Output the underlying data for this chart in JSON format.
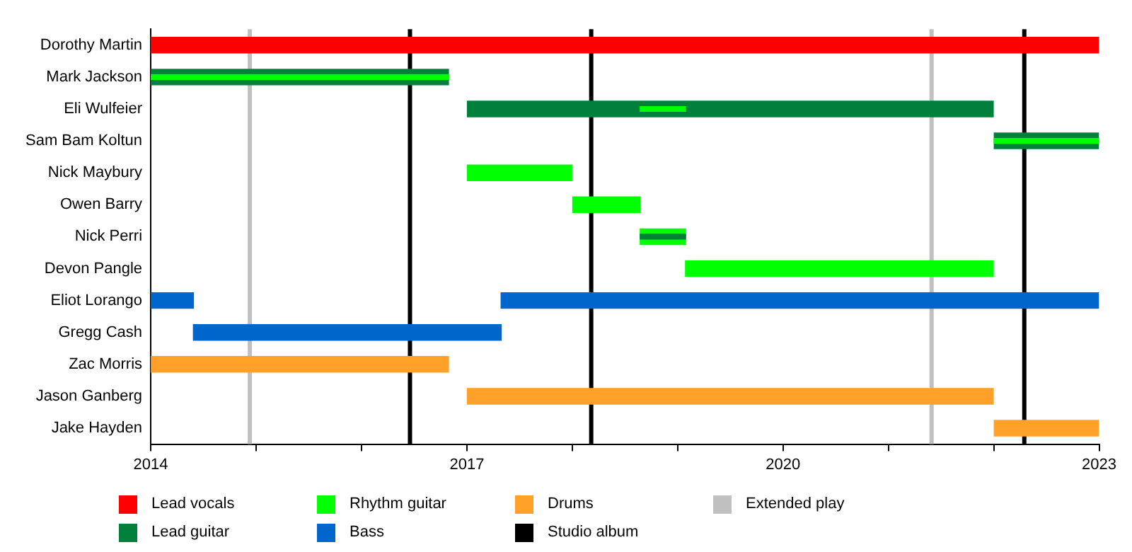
{
  "chart_data": {
    "type": "bar",
    "orientation": "horizontal",
    "categories": [
      "Dorothy Martin",
      "Mark Jackson",
      "Eli Wulfeier",
      "Sam Bam Koltun",
      "Nick Maybury",
      "Owen Barry",
      "Nick Perri",
      "Devon Pangle",
      "Eliot Lorango",
      "Gregg Cash",
      "Zac Morris",
      "Jason Ganberg",
      "Jake Hayden"
    ],
    "series": [
      {
        "name": "Lead vocals",
        "color": "#ff0000",
        "base": [
          2014,
          null,
          null,
          null,
          null,
          null,
          null,
          null,
          null,
          null,
          null,
          null,
          null
        ],
        "values": [
          9,
          null,
          null,
          null,
          null,
          null,
          null,
          null,
          null,
          null,
          null,
          null,
          null
        ]
      },
      {
        "name": "Lead guitar",
        "color": "#00803a",
        "base": [
          null,
          2014,
          2017,
          2022,
          null,
          null,
          null,
          null,
          null,
          null,
          null,
          null,
          null
        ],
        "values": [
          null,
          2.83,
          5,
          1,
          null,
          null,
          null,
          null,
          null,
          null,
          null,
          null,
          null
        ]
      },
      {
        "name": "Rhythm guitar",
        "color": "#00ff00",
        "base": [
          null,
          null,
          null,
          null,
          2017,
          2018,
          2018.64,
          2019.07,
          null,
          null,
          null,
          null,
          null
        ],
        "values": [
          null,
          null,
          null,
          null,
          1,
          0.65,
          0.44,
          2.93,
          null,
          null,
          null,
          null,
          null
        ]
      },
      {
        "color": "#00ff00",
        "base": [
          null,
          2014,
          2018.64,
          2022,
          null,
          null,
          null,
          null,
          null,
          null,
          null,
          null,
          null
        ],
        "values": [
          null,
          2.83,
          0.44,
          1,
          null,
          null,
          null,
          null,
          null,
          null,
          null,
          null,
          null
        ]
      },
      {
        "color": "#00803a",
        "base": [
          null,
          null,
          null,
          null,
          null,
          null,
          2018.64,
          null,
          null,
          null,
          null,
          null,
          null
        ],
        "values": [
          null,
          null,
          null,
          null,
          null,
          null,
          0.44,
          null,
          null,
          null,
          null,
          null,
          null
        ]
      },
      {
        "name": "Bass",
        "color": "#0066cc",
        "base": [
          null,
          null,
          null,
          null,
          null,
          null,
          null,
          null,
          2014,
          2014.4,
          null,
          null,
          null
        ],
        "values": [
          null,
          null,
          null,
          null,
          null,
          null,
          null,
          null,
          0.41,
          2.93,
          null,
          null,
          null
        ]
      },
      {
        "color": "#0066cc",
        "base": [
          null,
          null,
          null,
          null,
          null,
          null,
          null,
          null,
          2017.32,
          null,
          null,
          null,
          null
        ],
        "values": [
          null,
          null,
          null,
          null,
          null,
          null,
          null,
          null,
          5.68,
          null,
          null,
          null,
          null
        ]
      },
      {
        "name": "Drums",
        "color": "#ffa028",
        "base": [
          null,
          null,
          null,
          null,
          null,
          null,
          null,
          null,
          null,
          null,
          2014,
          2017,
          2022
        ],
        "values": [
          null,
          null,
          null,
          null,
          null,
          null,
          null,
          null,
          null,
          null,
          2.83,
          5,
          1
        ]
      }
    ],
    "ref_lines": [
      {
        "axis": "x",
        "value": 2014.94,
        "label": "Extended play",
        "color": "#c0c0c0"
      },
      {
        "axis": "x",
        "value": 2016.46,
        "label": "Studio album",
        "color": "#000000"
      },
      {
        "axis": "x",
        "value": 2018.18,
        "color": "#000000"
      },
      {
        "axis": "x",
        "value": 2021.41,
        "color": "#c0c0c0"
      },
      {
        "axis": "x",
        "value": 2022.29,
        "color": "#000000"
      }
    ],
    "xlim": [
      2014,
      2023
    ],
    "xticks": [
      2014,
      {
        "value": 2015,
        "label": null
      },
      {
        "value": 2016,
        "label": null
      },
      2017,
      {
        "value": 2018,
        "label": null
      },
      {
        "value": 2019,
        "label": null
      },
      2020,
      {
        "value": 2021,
        "label": null
      },
      {
        "value": 2022,
        "label": null
      },
      2023
    ],
    "grid": false,
    "legend": "bottom"
  }
}
